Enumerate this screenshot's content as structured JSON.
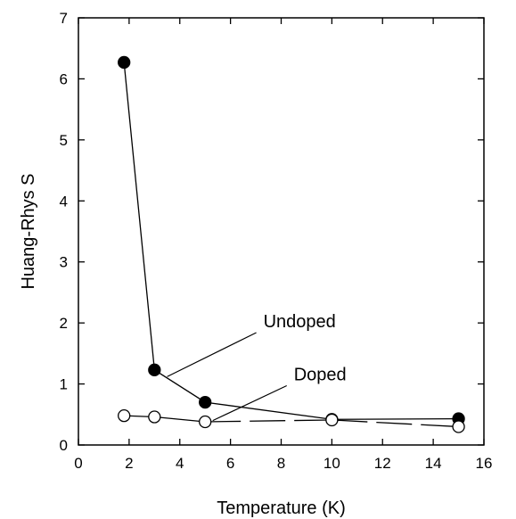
{
  "chart_data": {
    "type": "line",
    "title": "",
    "xlabel": "Temperature (K)",
    "ylabel": "Huang-Rhys S",
    "xlim": [
      0,
      16
    ],
    "ylim": [
      0,
      7
    ],
    "xticks": [
      "0",
      "2",
      "4",
      "6",
      "8",
      "10",
      "12",
      "14",
      "16"
    ],
    "yticks": [
      "0",
      "1",
      "2",
      "3",
      "4",
      "5",
      "6",
      "7"
    ],
    "grid": false,
    "legend": "none",
    "series": [
      {
        "name": "Undoped",
        "x": [
          1.8,
          3,
          5,
          10,
          15
        ],
        "y": [
          6.27,
          1.23,
          0.7,
          0.42,
          0.43
        ],
        "marker": "filled-circle",
        "line": "solid",
        "color": "#000000"
      },
      {
        "name": "Doped",
        "x": [
          1.8,
          3,
          5,
          10,
          15
        ],
        "y": [
          0.48,
          0.46,
          0.38,
          0.41,
          0.3
        ],
        "marker": "open-circle",
        "line": "solid-then-dashed",
        "color": "#000000"
      }
    ],
    "annotations": [
      {
        "text": "Undoped",
        "series": "Undoped",
        "at": [
          3.5,
          1.12
        ],
        "label_pos": [
          7.3,
          1.9
        ]
      },
      {
        "text": "Doped",
        "series": "Doped",
        "at": [
          5.3,
          0.4
        ],
        "label_pos": [
          8.5,
          1.03
        ]
      }
    ]
  }
}
